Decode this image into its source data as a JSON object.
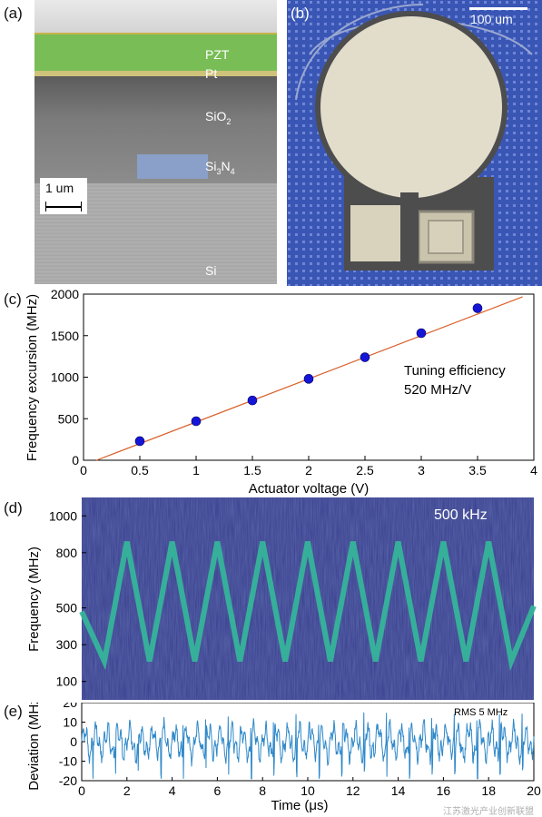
{
  "panels": {
    "a": {
      "label": "(a)",
      "layers": [
        "PZT",
        "Pt",
        "SiO",
        "Si",
        "Si"
      ],
      "layer_subs": {
        "sio2": "2",
        "si3n4_a": "3",
        "si3n4_b": "N",
        "si3n4_c": "4"
      },
      "scale_bar": "1 um"
    },
    "b": {
      "label": "(b)",
      "scale_bar": "100 um"
    },
    "c": {
      "label": "(c)",
      "annotation_line1": "Tuning efficiency",
      "annotation_line2": "520 MHz/V"
    },
    "d": {
      "label": "(d)",
      "annotation": "500 kHz"
    },
    "e": {
      "label": "(e)",
      "annotation": "RMS 5 MHz"
    }
  },
  "watermark": "江苏激光产业创新联盟",
  "chart_data": [
    {
      "panel": "c",
      "type": "scatter",
      "xlabel": "Actuator voltage (V)",
      "ylabel": "Frequency excursion (MHz)",
      "xlim": [
        0,
        4
      ],
      "ylim": [
        0,
        2000
      ],
      "xticks": [
        "0",
        "0.5",
        "1",
        "1.5",
        "2",
        "2.5",
        "3",
        "3.5",
        "4"
      ],
      "yticks": [
        "0",
        "500",
        "1000",
        "1500",
        "2000"
      ],
      "x": [
        0.5,
        1.0,
        1.5,
        2.0,
        2.5,
        3.0,
        3.5
      ],
      "y": [
        230,
        470,
        720,
        980,
        1240,
        1530,
        1830
      ],
      "fit": {
        "slope": 520,
        "intercept": -60
      },
      "colors": {
        "points": "#1515d8",
        "fit": "#d9602a"
      }
    },
    {
      "panel": "d",
      "type": "heatmap",
      "xlabel": "",
      "ylabel": "Frequency (MHz)",
      "ylim": [
        0,
        1100
      ],
      "yticks": [
        "100",
        "300",
        "500",
        "800",
        "1000"
      ],
      "ytick_values": [
        100,
        300,
        500,
        800,
        1000
      ],
      "x": [
        0,
        1,
        2,
        3,
        4,
        5,
        6,
        7,
        8,
        9,
        10,
        11,
        12,
        13,
        14,
        15,
        16,
        17,
        18,
        19,
        20
      ],
      "y": [
        480,
        210,
        860,
        210,
        860,
        210,
        860,
        210,
        860,
        210,
        860,
        210,
        860,
        210,
        860,
        210,
        860,
        210,
        860,
        210,
        510
      ],
      "colors": {
        "background": "#3b3f8f",
        "trace": "#35b79a"
      }
    },
    {
      "panel": "e",
      "type": "line",
      "xlabel": "Time (μs)",
      "ylabel": "Deviation (MHz)",
      "xlim": [
        0,
        20
      ],
      "ylim": [
        -20,
        20
      ],
      "xticks": [
        "0",
        "2",
        "4",
        "6",
        "8",
        "10",
        "12",
        "14",
        "16",
        "18",
        "20"
      ],
      "yticks": [
        "-20",
        "-10",
        "0",
        "10",
        "20"
      ],
      "colors": {
        "line": "#2f88c9"
      }
    }
  ]
}
